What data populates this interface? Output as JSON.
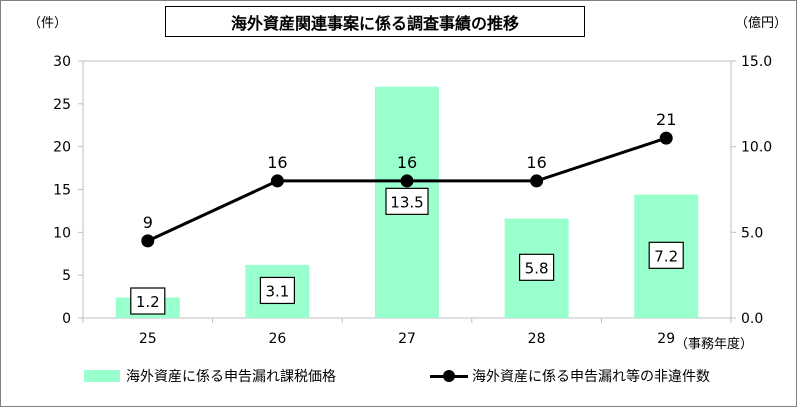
{
  "chart_data": {
    "type": "bar+line",
    "title": "海外資産関連事案に係る調査事績の推移",
    "categories": [
      "25",
      "26",
      "27",
      "28",
      "29"
    ],
    "x_unit_label": "（事務年度）",
    "left_axis": {
      "unit_label": "（件）",
      "ylim": [
        0,
        30
      ],
      "ticks": [
        0,
        5,
        10,
        15,
        20,
        25,
        30
      ],
      "tick_labels": [
        "0",
        "5",
        "10",
        "15",
        "20",
        "25",
        "30"
      ]
    },
    "right_axis": {
      "unit_label": "（億円）",
      "ylim": [
        0,
        15
      ],
      "ticks": [
        0,
        5,
        10,
        15
      ],
      "tick_labels": [
        "0.0",
        "5.0",
        "10.0",
        "15.0"
      ]
    },
    "series": [
      {
        "name": "海外資産に係る申告漏れ課税価格",
        "type": "bar",
        "axis": "right",
        "values": [
          1.2,
          3.1,
          13.5,
          5.8,
          7.2
        ],
        "labels": [
          "1.2",
          "3.1",
          "13.5",
          "5.8",
          "7.2"
        ],
        "color": "#99ffcc"
      },
      {
        "name": "海外資産に係る申告漏れ等の非違件数",
        "type": "line",
        "axis": "left",
        "values": [
          9,
          16,
          16,
          16,
          21
        ],
        "labels": [
          "9",
          "16",
          "16",
          "16",
          "21"
        ],
        "color": "#000000"
      }
    ],
    "grid": false,
    "legend_position": "bottom"
  }
}
